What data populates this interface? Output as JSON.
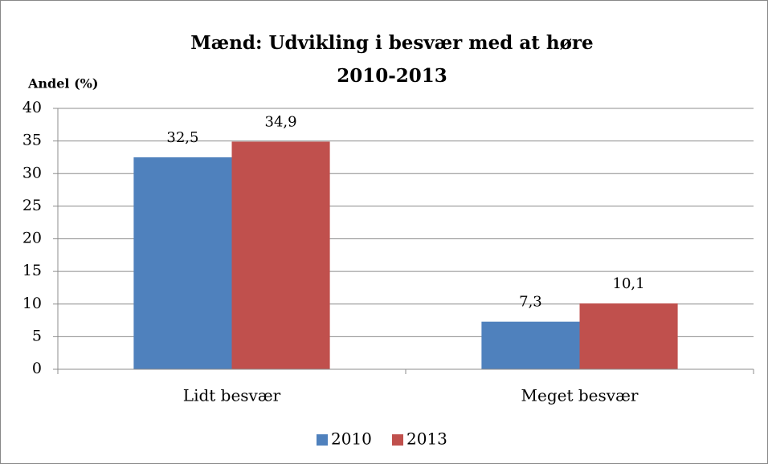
{
  "chart_data": {
    "type": "bar",
    "title": "Mænd: Udvikling i besvær med at høre",
    "subtitle": "2010-2013",
    "y_label": "Andel (%)",
    "categories": [
      "Lidt besvær",
      "Meget besvær"
    ],
    "series": [
      {
        "name": "2010",
        "color": "#4f81bd",
        "values": [
          32.5,
          7.3
        ],
        "value_labels": [
          "32,5",
          "7,3"
        ]
      },
      {
        "name": "2013",
        "color": "#c0504d",
        "values": [
          34.9,
          10.1
        ],
        "value_labels": [
          "34,9",
          "10,1"
        ]
      }
    ],
    "ylim": [
      0,
      40
    ],
    "yticks": [
      0,
      5,
      10,
      15,
      20,
      25,
      30,
      35,
      40
    ],
    "grid": true,
    "legend": "bottom"
  }
}
